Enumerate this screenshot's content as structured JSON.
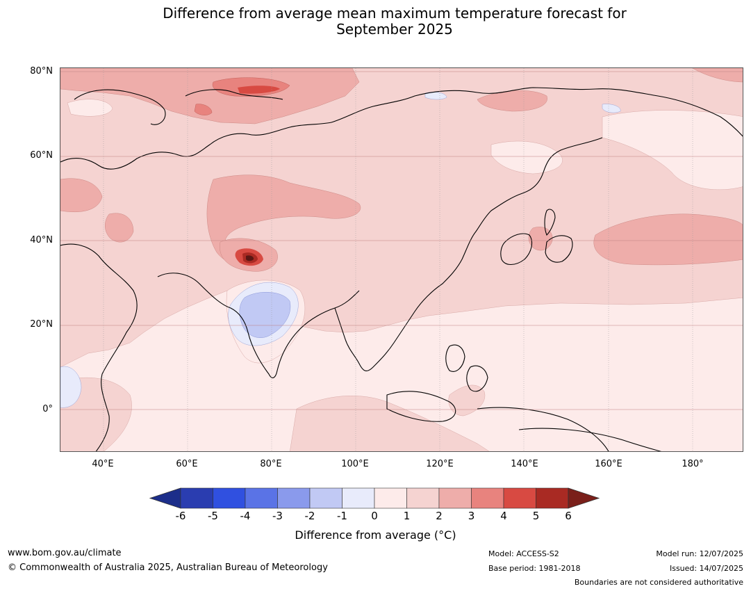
{
  "title_line1": "Difference from average mean maximum temperature forecast for",
  "title_line2": "September 2025",
  "lat_labels": [
    "80°N",
    "60°N",
    "40°N",
    "20°N",
    "0°"
  ],
  "lon_labels": [
    "40°E",
    "60°E",
    "80°E",
    "100°E",
    "120°E",
    "140°E",
    "160°E",
    "180°"
  ],
  "colorbar": {
    "ticks": [
      "-6",
      "-5",
      "-4",
      "-3",
      "-2",
      "-1",
      "0",
      "1",
      "2",
      "3",
      "4",
      "5",
      "6"
    ],
    "colors": [
      "#1c2e8a",
      "#2a3db0",
      "#3050e0",
      "#5a73e6",
      "#8a9aec",
      "#c1c9f4",
      "#e8ebfb",
      "#fdebea",
      "#f5d3d1",
      "#eeadaa",
      "#e8837e",
      "#d84a42",
      "#a92a23",
      "#7a1f1a"
    ],
    "label": "Difference from average (°C)"
  },
  "footer": {
    "website": "www.bom.gov.au/climate",
    "copyright": "© Commonwealth of Australia 2025, Australian Bureau of Meteorology",
    "model": "Model: ACCESS-S2",
    "base_period": "Base period: 1981-2018",
    "model_run": "Model run: 12/07/2025",
    "issued": "Issued: 14/07/2025",
    "disclaimer": "Boundaries are not considered authoritative"
  }
}
